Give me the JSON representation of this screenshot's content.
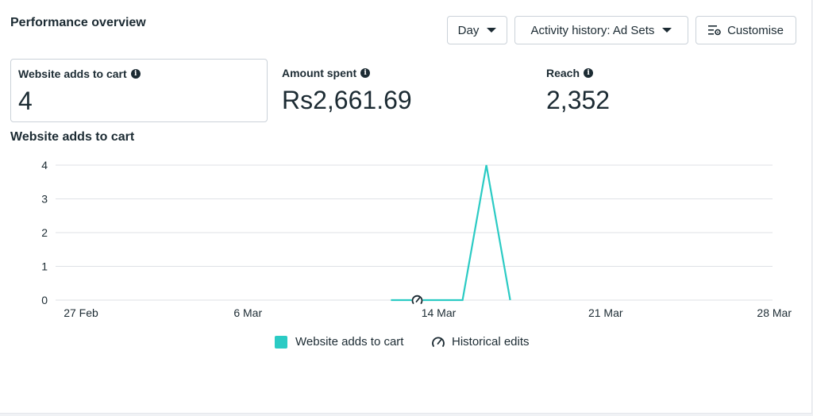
{
  "header": {
    "title": "Performance overview",
    "day_label": "Day",
    "activity_label": "Activity history: Ad Sets",
    "customise_label": "Customise"
  },
  "metrics": [
    {
      "label": "Website adds to cart",
      "value": "4",
      "selected": true
    },
    {
      "label": "Amount spent",
      "value": "Rs2,661.69",
      "selected": false
    },
    {
      "label": "Reach",
      "value": "2,352",
      "selected": false
    }
  ],
  "chart_title": "Website adds to cart",
  "colors": {
    "series": "#2bcbc4",
    "grid": "#dfe2e6",
    "text": "#1c2b33"
  },
  "legend": {
    "series_label": "Website adds to cart",
    "edits_label": "Historical edits",
    "edits_icon": "gauge-icon"
  },
  "chart_data": {
    "type": "line",
    "title": "",
    "xlabel": "",
    "ylabel": "",
    "x_tick_labels": [
      "27 Feb",
      "6 Mar",
      "14 Mar",
      "21 Mar",
      "28 Mar"
    ],
    "x_tick_days": [
      0,
      7,
      15,
      22,
      29
    ],
    "y_ticks": [
      0,
      1,
      2,
      3,
      4
    ],
    "ylim": [
      0,
      4
    ],
    "grid": true,
    "legend_position": "bottom-center",
    "series": [
      {
        "name": "Website adds to cart",
        "points": [
          {
            "date": "12 Mar",
            "day": 13,
            "value": 0
          },
          {
            "date": "13 Mar",
            "day": 14,
            "value": 0
          },
          {
            "date": "14 Mar",
            "day": 15,
            "value": 0
          },
          {
            "date": "15 Mar",
            "day": 16,
            "value": 0
          },
          {
            "date": "16 Mar",
            "day": 17,
            "value": 4
          },
          {
            "date": "17 Mar",
            "day": 18,
            "value": 0
          }
        ]
      }
    ],
    "historical_edit_markers": [
      {
        "date": "14 Mar",
        "day": 14.1,
        "value": 0
      }
    ]
  }
}
